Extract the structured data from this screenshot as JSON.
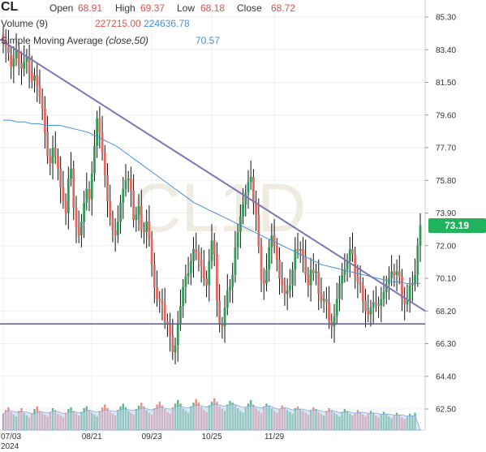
{
  "header": {
    "ticker": "CL",
    "open_label": "Open",
    "open_value": "68.91",
    "high_label": "High",
    "high_value": "69.37",
    "low_label": "Low",
    "low_value": "68.18",
    "close_label": "Close",
    "close_value": "68.72",
    "volume_label": "Volume (9)",
    "volume_value1": "227215.00",
    "volume_value2": "224636.78",
    "sma_label": "Simple Moving Average (close,50)",
    "sma_value": "70.57"
  },
  "price_badge": "73.19",
  "watermark": "CL1D",
  "colors": {
    "up": "#2e9e57",
    "down": "#e5675d",
    "sma": "#4a8fd9",
    "trendline": "#7b76b5",
    "support": "#5b5796",
    "badge": "#1fb35b",
    "volume_area": "#bcd4f2"
  },
  "chart_data": {
    "type": "candlestick",
    "title": "CL",
    "yaxis": {
      "ticks": [
        "85.30",
        "83.40",
        "81.50",
        "79.60",
        "77.70",
        "75.80",
        "73.90",
        "72.00",
        "70.10",
        "68.20",
        "66.30",
        "64.40",
        "62.50"
      ],
      "range": [
        61.6,
        86.2
      ],
      "position": "right"
    },
    "xaxis": {
      "ticks": [
        {
          "label": "07/03",
          "sub": "2024",
          "index": 0
        },
        {
          "label": "08/21",
          "sub": "",
          "index": 34
        },
        {
          "label": "09/23",
          "sub": "",
          "index": 57
        },
        {
          "label": "10/25",
          "sub": "",
          "index": 80
        },
        {
          "label": "11/29",
          "sub": "",
          "index": 104
        }
      ]
    },
    "closes": [
      83.9,
      83.6,
      83.2,
      82.4,
      82.9,
      83.4,
      82.6,
      82.3,
      82.7,
      83.0,
      82.1,
      81.6,
      81.9,
      81.3,
      80.7,
      80.0,
      78.6,
      77.2,
      76.8,
      77.7,
      77.2,
      76.5,
      75.4,
      74.6,
      73.9,
      75.9,
      76.5,
      74.2,
      73.1,
      72.6,
      73.4,
      74.5,
      75.3,
      74.7,
      76.2,
      77.8,
      79.4,
      78.6,
      77.4,
      76.1,
      74.6,
      73.6,
      72.9,
      72.6,
      73.4,
      74.5,
      75.3,
      75.8,
      75.9,
      75.2,
      73.5,
      73.8,
      74.3,
      72.9,
      72.8,
      73.4,
      72.4,
      70.9,
      69.6,
      68.9,
      68.8,
      68.6,
      67.6,
      67.4,
      66.8,
      65.8,
      66.2,
      67.5,
      68.5,
      69.6,
      70.2,
      70.4,
      71.1,
      71.8,
      71.6,
      71.2,
      70.8,
      70.1,
      69.7,
      71.1,
      72.3,
      71.5,
      68.8,
      67.4,
      67.3,
      68.4,
      69.4,
      69.6,
      70.3,
      71.9,
      72.8,
      73.7,
      74.4,
      75.1,
      75.7,
      76.0,
      74.5,
      73.8,
      72.0,
      70.0,
      69.8,
      70.6,
      71.9,
      72.6,
      72.0,
      71.2,
      70.1,
      69.7,
      69.2,
      69.4,
      69.7,
      70.6,
      71.8,
      71.7,
      71.8,
      71.4,
      70.3,
      69.7,
      70.6,
      70.4,
      70.5,
      69.2,
      68.8,
      68.9,
      68.7,
      67.6,
      67.3,
      67.9,
      68.9,
      69.8,
      70.3,
      70.6,
      71.1,
      71.8,
      71.5,
      70.2,
      69.9,
      69.7,
      68.8,
      68.2,
      68.0,
      68.4,
      68.7,
      68.6,
      68.5,
      68.9,
      69.3,
      69.8,
      70.1,
      70.5,
      70.3,
      70.5,
      70.2,
      68.9,
      68.6,
      68.8,
      69.7,
      69.8,
      70.3,
      72.0,
      73.19
    ],
    "opens": [
      84.3,
      83.9,
      83.6,
      83.1,
      82.4,
      82.9,
      83.4,
      82.6,
      82.3,
      82.7,
      83.0,
      82.1,
      81.6,
      81.9,
      81.3,
      80.7,
      80.0,
      78.6,
      77.2,
      76.8,
      77.7,
      77.2,
      76.5,
      75.4,
      74.6,
      73.9,
      75.9,
      76.5,
      74.2,
      73.1,
      72.6,
      73.4,
      74.5,
      75.3,
      74.7,
      76.2,
      77.8,
      79.4,
      78.6,
      77.4,
      76.1,
      74.6,
      73.6,
      72.9,
      72.6,
      73.4,
      74.5,
      75.3,
      75.8,
      75.9,
      75.2,
      73.5,
      73.8,
      74.3,
      72.9,
      72.8,
      73.4,
      72.4,
      70.9,
      69.6,
      68.9,
      68.8,
      68.6,
      67.6,
      67.4,
      66.8,
      65.8,
      66.2,
      67.5,
      68.5,
      69.6,
      70.2,
      70.4,
      71.1,
      71.8,
      71.6,
      71.2,
      70.8,
      70.1,
      69.7,
      71.1,
      72.3,
      71.5,
      68.8,
      67.4,
      67.3,
      68.4,
      69.4,
      69.6,
      70.3,
      71.9,
      72.8,
      73.7,
      74.4,
      75.1,
      75.7,
      76.0,
      74.5,
      73.8,
      72.0,
      70.0,
      69.8,
      70.6,
      71.9,
      72.6,
      72.0,
      71.2,
      70.1,
      69.7,
      69.2,
      69.4,
      69.7,
      70.6,
      71.8,
      71.7,
      71.8,
      71.4,
      70.3,
      69.7,
      70.6,
      70.4,
      70.5,
      69.2,
      68.8,
      68.9,
      68.7,
      67.6,
      67.3,
      67.9,
      68.9,
      69.8,
      70.3,
      70.6,
      71.1,
      71.8,
      71.5,
      70.2,
      69.9,
      69.7,
      68.8,
      68.2,
      68.0,
      68.4,
      68.7,
      68.6,
      68.5,
      68.9,
      69.3,
      69.8,
      70.1,
      70.5,
      70.3,
      70.5,
      70.2,
      68.9,
      68.6,
      68.8,
      69.7,
      69.8,
      70.3,
      72.0
    ],
    "sma": [
      79.3,
      79.3,
      79.2,
      79.2,
      79.1,
      79.1,
      79.0,
      79.0,
      79.0,
      78.9,
      78.8,
      78.7,
      78.6,
      78.4,
      78.2,
      78.0,
      77.8,
      77.5,
      77.2,
      76.9,
      76.6,
      76.3,
      76.0,
      75.7,
      75.4,
      75.1,
      74.8,
      74.5,
      74.3,
      74.1,
      73.9,
      73.7,
      73.5,
      73.3,
      73.1,
      72.9,
      72.7,
      72.5,
      72.3,
      72.1,
      71.9,
      71.7,
      71.5,
      71.3,
      71.1,
      70.9,
      70.8,
      70.7,
      70.6,
      70.5,
      70.4,
      70.3,
      70.2,
      70.1,
      70.0,
      69.9,
      69.9,
      69.8,
      69.8,
      69.8
    ],
    "volume": [
      18,
      22,
      25,
      20,
      17,
      15,
      21,
      24,
      19,
      16,
      14,
      18,
      23,
      26,
      21,
      19,
      17,
      15,
      20,
      24,
      22,
      18,
      16,
      14,
      19,
      23,
      25,
      21,
      18,
      16,
      20,
      24,
      26,
      22,
      19,
      17,
      15,
      21,
      25,
      28,
      24,
      20,
      18,
      16,
      22,
      26,
      29,
      25,
      21,
      19,
      17,
      23,
      27,
      30,
      26,
      22,
      19,
      17,
      24,
      28,
      31,
      27,
      23,
      20,
      18,
      25,
      29,
      33,
      29,
      24,
      21,
      19,
      26,
      30,
      34,
      30,
      25,
      22,
      20,
      27,
      31,
      35,
      31,
      26,
      23,
      21,
      28,
      32,
      30,
      27,
      24,
      21,
      19,
      25,
      29,
      33,
      28,
      24,
      21,
      19,
      26,
      29,
      27,
      24,
      21,
      19,
      23,
      27,
      25,
      22,
      20,
      18,
      24,
      26,
      23,
      21,
      19,
      17,
      22,
      25,
      23,
      20,
      18,
      16,
      21,
      24,
      22,
      19,
      17,
      15,
      20,
      23,
      21,
      18,
      16,
      19,
      22,
      20,
      17,
      15,
      18,
      21,
      19,
      16,
      14,
      17,
      20,
      18,
      15,
      13,
      16,
      19,
      17,
      14,
      12,
      15,
      18,
      16,
      19
    ]
  }
}
